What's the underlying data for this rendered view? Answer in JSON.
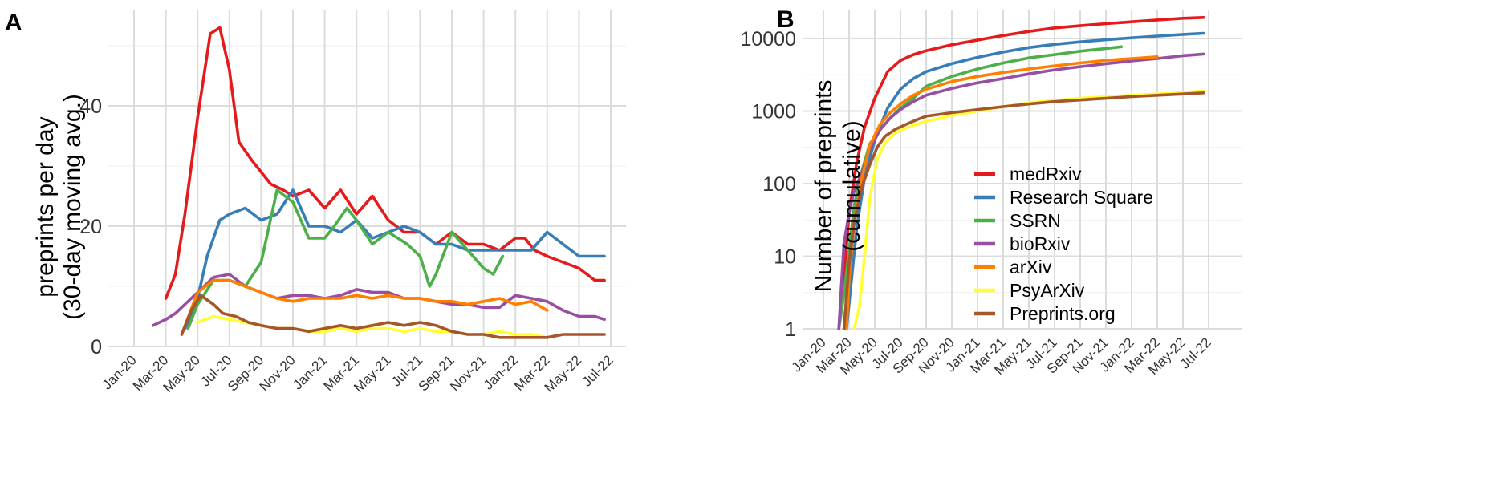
{
  "chart_data": [
    {
      "panel": "A",
      "type": "line",
      "title": "",
      "ylabel_lines": [
        "preprints per day",
        "(30-day moving avg.)"
      ],
      "xlabel": "",
      "x_ticks": [
        "Jan-20",
        "Mar-20",
        "May-20",
        "Jul-20",
        "Sep-20",
        "Nov-20",
        "Jan-21",
        "Mar-21",
        "May-21",
        "Jul-21",
        "Sep-21",
        "Nov-21",
        "Jan-22",
        "Mar-22",
        "May-22",
        "Jul-22"
      ],
      "ylim": [
        0,
        56
      ],
      "y_ticks": [
        0,
        20,
        40
      ],
      "y_tick_labels": [
        "0",
        "20",
        "40"
      ],
      "grid": true,
      "series": [
        {
          "name": "medRxiv",
          "color": "#e41a1c",
          "x": [
            1.0,
            1.3,
            1.6,
            2.0,
            2.4,
            2.7,
            3.0,
            3.3,
            3.7,
            4.0,
            4.3,
            4.7,
            5.0,
            5.5,
            6.0,
            6.5,
            7.0,
            7.5,
            8.0,
            8.5,
            9.0,
            9.5,
            10.0,
            10.5,
            11.0,
            11.5,
            12.0,
            12.3,
            12.6,
            13.0,
            13.5,
            14.0,
            14.5,
            14.8
          ],
          "y": [
            8,
            12,
            22,
            38,
            52,
            53,
            46,
            34,
            31,
            29,
            27,
            26,
            25,
            26,
            23,
            26,
            22,
            25,
            21,
            19,
            19,
            17,
            19,
            17,
            17,
            16,
            18,
            18,
            16,
            15,
            14,
            13,
            11,
            11
          ]
        },
        {
          "name": "Research Square",
          "color": "#377eb8",
          "x": [
            1.6,
            2.0,
            2.3,
            2.7,
            3.0,
            3.5,
            4.0,
            4.5,
            5.0,
            5.5,
            6.0,
            6.5,
            7.0,
            7.5,
            8.0,
            8.5,
            9.0,
            9.5,
            10.0,
            10.5,
            11.0,
            11.5,
            12.0,
            12.5,
            13.0,
            13.5,
            14.0,
            14.5,
            14.8
          ],
          "y": [
            3,
            8,
            15,
            21,
            22,
            23,
            21,
            22,
            26,
            20,
            20,
            19,
            21,
            18,
            19,
            20,
            19,
            17,
            17,
            16,
            16,
            16,
            16,
            16,
            19,
            17,
            15,
            15,
            15
          ]
        },
        {
          "name": "SSRN",
          "color": "#4daf4a",
          "x": [
            1.7,
            2.0,
            2.5,
            3.0,
            3.5,
            4.0,
            4.5,
            5.0,
            5.5,
            6.0,
            6.3,
            6.7,
            7.0,
            7.5,
            8.0,
            8.3,
            8.6,
            9.0,
            9.3,
            9.5,
            10.0,
            10.5,
            11.0,
            11.3,
            11.6
          ],
          "y": [
            3,
            7,
            11,
            11,
            10,
            14,
            26,
            24,
            18,
            18,
            20,
            23,
            21,
            17,
            19,
            18,
            17,
            15,
            10,
            12,
            19,
            16,
            13,
            12,
            15
          ]
        },
        {
          "name": "bioRxiv",
          "color": "#984ea3",
          "x": [
            0.6,
            1.0,
            1.3,
            1.6,
            2.0,
            2.5,
            3.0,
            3.5,
            4.0,
            4.5,
            5.0,
            5.5,
            6.0,
            6.5,
            7.0,
            7.5,
            8.0,
            8.5,
            9.0,
            9.5,
            10.0,
            10.5,
            11.0,
            11.5,
            12.0,
            12.5,
            13.0,
            13.5,
            14.0,
            14.5,
            14.8
          ],
          "y": [
            3.5,
            4.5,
            5.5,
            7,
            9,
            11.5,
            12,
            10,
            9,
            8,
            8.5,
            8.5,
            8,
            8.5,
            9.5,
            9,
            9,
            8,
            8,
            7.5,
            7,
            7,
            6.5,
            6.5,
            8.5,
            8,
            7.5,
            6,
            5,
            5,
            4.5
          ]
        },
        {
          "name": "arXiv",
          "color": "#ff7f00",
          "x": [
            1.5,
            2.0,
            2.5,
            3.0,
            3.5,
            4.0,
            4.5,
            5.0,
            5.5,
            6.0,
            6.5,
            7.0,
            7.5,
            8.0,
            8.5,
            9.0,
            9.5,
            10.0,
            10.5,
            11.0,
            11.5,
            12.0,
            12.5,
            13.0
          ],
          "y": [
            2,
            9,
            11,
            11,
            10,
            9,
            8,
            7.5,
            8,
            8,
            8,
            8.5,
            8,
            8.5,
            8,
            8,
            7.5,
            7.5,
            7,
            7.5,
            8,
            7,
            7.5,
            6
          ]
        },
        {
          "name": "PsyArXiv",
          "color": "#ffff33",
          "x": [
            2.0,
            2.5,
            3.0,
            3.5,
            4.0,
            4.5,
            5.0,
            5.5,
            6.0,
            6.5,
            7.0,
            7.5,
            8.0,
            8.5,
            9.0,
            9.5,
            10.0,
            10.5,
            11.0,
            11.5,
            12.0,
            12.5,
            13.0
          ],
          "y": [
            4,
            5,
            4.5,
            4,
            3.5,
            3,
            3,
            2.5,
            2.5,
            3,
            2.5,
            3,
            3,
            2.5,
            3,
            2.5,
            2.5,
            2,
            2,
            2.5,
            2,
            2,
            1.5
          ]
        },
        {
          "name": "Preprints.org",
          "color": "#a65628",
          "x": [
            1.5,
            1.8,
            2.1,
            2.5,
            2.8,
            3.2,
            3.6,
            4.0,
            4.5,
            5.0,
            5.5,
            6.0,
            6.5,
            7.0,
            7.5,
            8.0,
            8.5,
            9.0,
            9.5,
            10.0,
            10.5,
            11.0,
            11.5,
            12.0,
            12.5,
            13.0,
            13.5,
            14.0,
            14.5,
            14.8
          ],
          "y": [
            2,
            6,
            8.5,
            7,
            5.5,
            5,
            4,
            3.5,
            3,
            3,
            2.5,
            3,
            3.5,
            3,
            3.5,
            4,
            3.5,
            4,
            3.5,
            2.5,
            2,
            2,
            1.5,
            1.5,
            1.5,
            1.5,
            2,
            2,
            2,
            2
          ]
        }
      ]
    },
    {
      "panel": "B",
      "type": "line",
      "title": "",
      "ylabel_lines": [
        "Number of preprints",
        "(cumulative)"
      ],
      "xlabel": "",
      "x_ticks": [
        "Jan-20",
        "Mar-20",
        "May-20",
        "Jul-20",
        "Sep-20",
        "Nov-20",
        "Jan-21",
        "Mar-21",
        "May-21",
        "Jul-21",
        "Sep-21",
        "Nov-21",
        "Jan-22",
        "Mar-22",
        "May-22",
        "Jul-22"
      ],
      "y_scale": "log10",
      "ylim": [
        1,
        25000
      ],
      "y_ticks": [
        1,
        10,
        100,
        1000,
        10000
      ],
      "y_tick_labels": [
        "1",
        "10",
        "100",
        "1000",
        "10000"
      ],
      "grid": true,
      "legend_position": "right",
      "series": [
        {
          "name": "medRxiv",
          "color": "#e41a1c",
          "x": [
            0.6,
            0.8,
            1.0,
            1.3,
            1.6,
            2.0,
            2.5,
            3.0,
            3.5,
            4.0,
            5.0,
            6.0,
            7.0,
            8.0,
            9.0,
            10.0,
            11.0,
            12.0,
            13.0,
            14.0,
            14.8
          ],
          "y": [
            1,
            5,
            40,
            200,
            600,
            1500,
            3500,
            5000,
            6000,
            6800,
            8200,
            9500,
            11000,
            12500,
            14000,
            15000,
            16000,
            17000,
            18000,
            19000,
            19500
          ]
        },
        {
          "name": "Research Square",
          "color": "#377eb8",
          "x": [
            0.9,
            1.1,
            1.3,
            1.6,
            2.0,
            2.5,
            3.0,
            3.5,
            4.0,
            5.0,
            6.0,
            7.0,
            8.0,
            9.0,
            10.0,
            11.0,
            12.0,
            13.0,
            14.0,
            14.8
          ],
          "y": [
            1,
            5,
            25,
            120,
            400,
            1100,
            2000,
            2800,
            3500,
            4500,
            5500,
            6500,
            7500,
            8300,
            9000,
            9600,
            10200,
            10800,
            11400,
            11800
          ]
        },
        {
          "name": "SSRN",
          "color": "#4daf4a",
          "x": [
            0.6,
            0.8,
            1.0,
            1.2,
            1.5,
            1.8,
            2.2,
            2.6,
            3.0,
            3.5,
            4.0,
            5.0,
            6.0,
            7.0,
            8.0,
            9.0,
            10.0,
            11.0,
            11.6
          ],
          "y": [
            1,
            3,
            12,
            50,
            150,
            350,
            550,
            800,
            1100,
            1500,
            2200,
            3000,
            3800,
            4600,
            5400,
            6000,
            6700,
            7300,
            7700
          ]
        },
        {
          "name": "bioRxiv",
          "color": "#984ea3",
          "x": [
            0.6,
            0.7,
            0.8,
            1.0,
            1.2,
            1.5,
            1.8,
            2.2,
            2.6,
            3.0,
            3.5,
            4.0,
            5.0,
            6.0,
            7.0,
            8.0,
            9.0,
            10.0,
            11.0,
            12.0,
            13.0,
            14.0,
            14.8
          ],
          "y": [
            1,
            4,
            15,
            40,
            80,
            140,
            300,
            550,
            800,
            1050,
            1350,
            1650,
            2050,
            2450,
            2800,
            3250,
            3700,
            4100,
            4500,
            4900,
            5300,
            5800,
            6100
          ]
        },
        {
          "name": "arXiv",
          "color": "#ff7f00",
          "x": [
            0.9,
            1.0,
            1.2,
            1.5,
            1.8,
            2.2,
            2.6,
            3.0,
            3.5,
            4.0,
            5.0,
            6.0,
            7.0,
            8.0,
            9.0,
            10.0,
            11.0,
            12.0,
            13.0
          ],
          "y": [
            1,
            5,
            30,
            120,
            330,
            650,
            950,
            1250,
            1650,
            2000,
            2550,
            3000,
            3400,
            3800,
            4200,
            4600,
            5000,
            5300,
            5600
          ]
        },
        {
          "name": "PsyArXiv",
          "color": "#ffff33",
          "x": [
            1.2,
            1.4,
            1.6,
            1.8,
            2.1,
            2.4,
            2.8,
            3.2,
            3.6,
            4.0,
            5.0,
            6.0,
            7.0,
            8.0,
            9.0,
            10.0,
            11.0,
            12.0,
            13.0,
            14.0,
            14.8
          ],
          "y": [
            1,
            2,
            10,
            60,
            220,
            360,
            500,
            580,
            650,
            720,
            870,
            1000,
            1150,
            1300,
            1400,
            1500,
            1580,
            1650,
            1720,
            1800,
            1900
          ]
        },
        {
          "name": "Preprints.org",
          "color": "#a65628",
          "x": [
            0.8,
            1.0,
            1.2,
            1.5,
            1.8,
            2.1,
            2.4,
            2.8,
            3.2,
            3.6,
            4.0,
            5.0,
            6.0,
            7.0,
            8.0,
            9.0,
            10.0,
            11.0,
            12.0,
            13.0,
            14.0,
            14.8
          ],
          "y": [
            1,
            8,
            30,
            90,
            180,
            320,
            450,
            560,
            650,
            750,
            850,
            950,
            1050,
            1150,
            1250,
            1350,
            1420,
            1500,
            1580,
            1650,
            1720,
            1780
          ]
        }
      ]
    }
  ]
}
